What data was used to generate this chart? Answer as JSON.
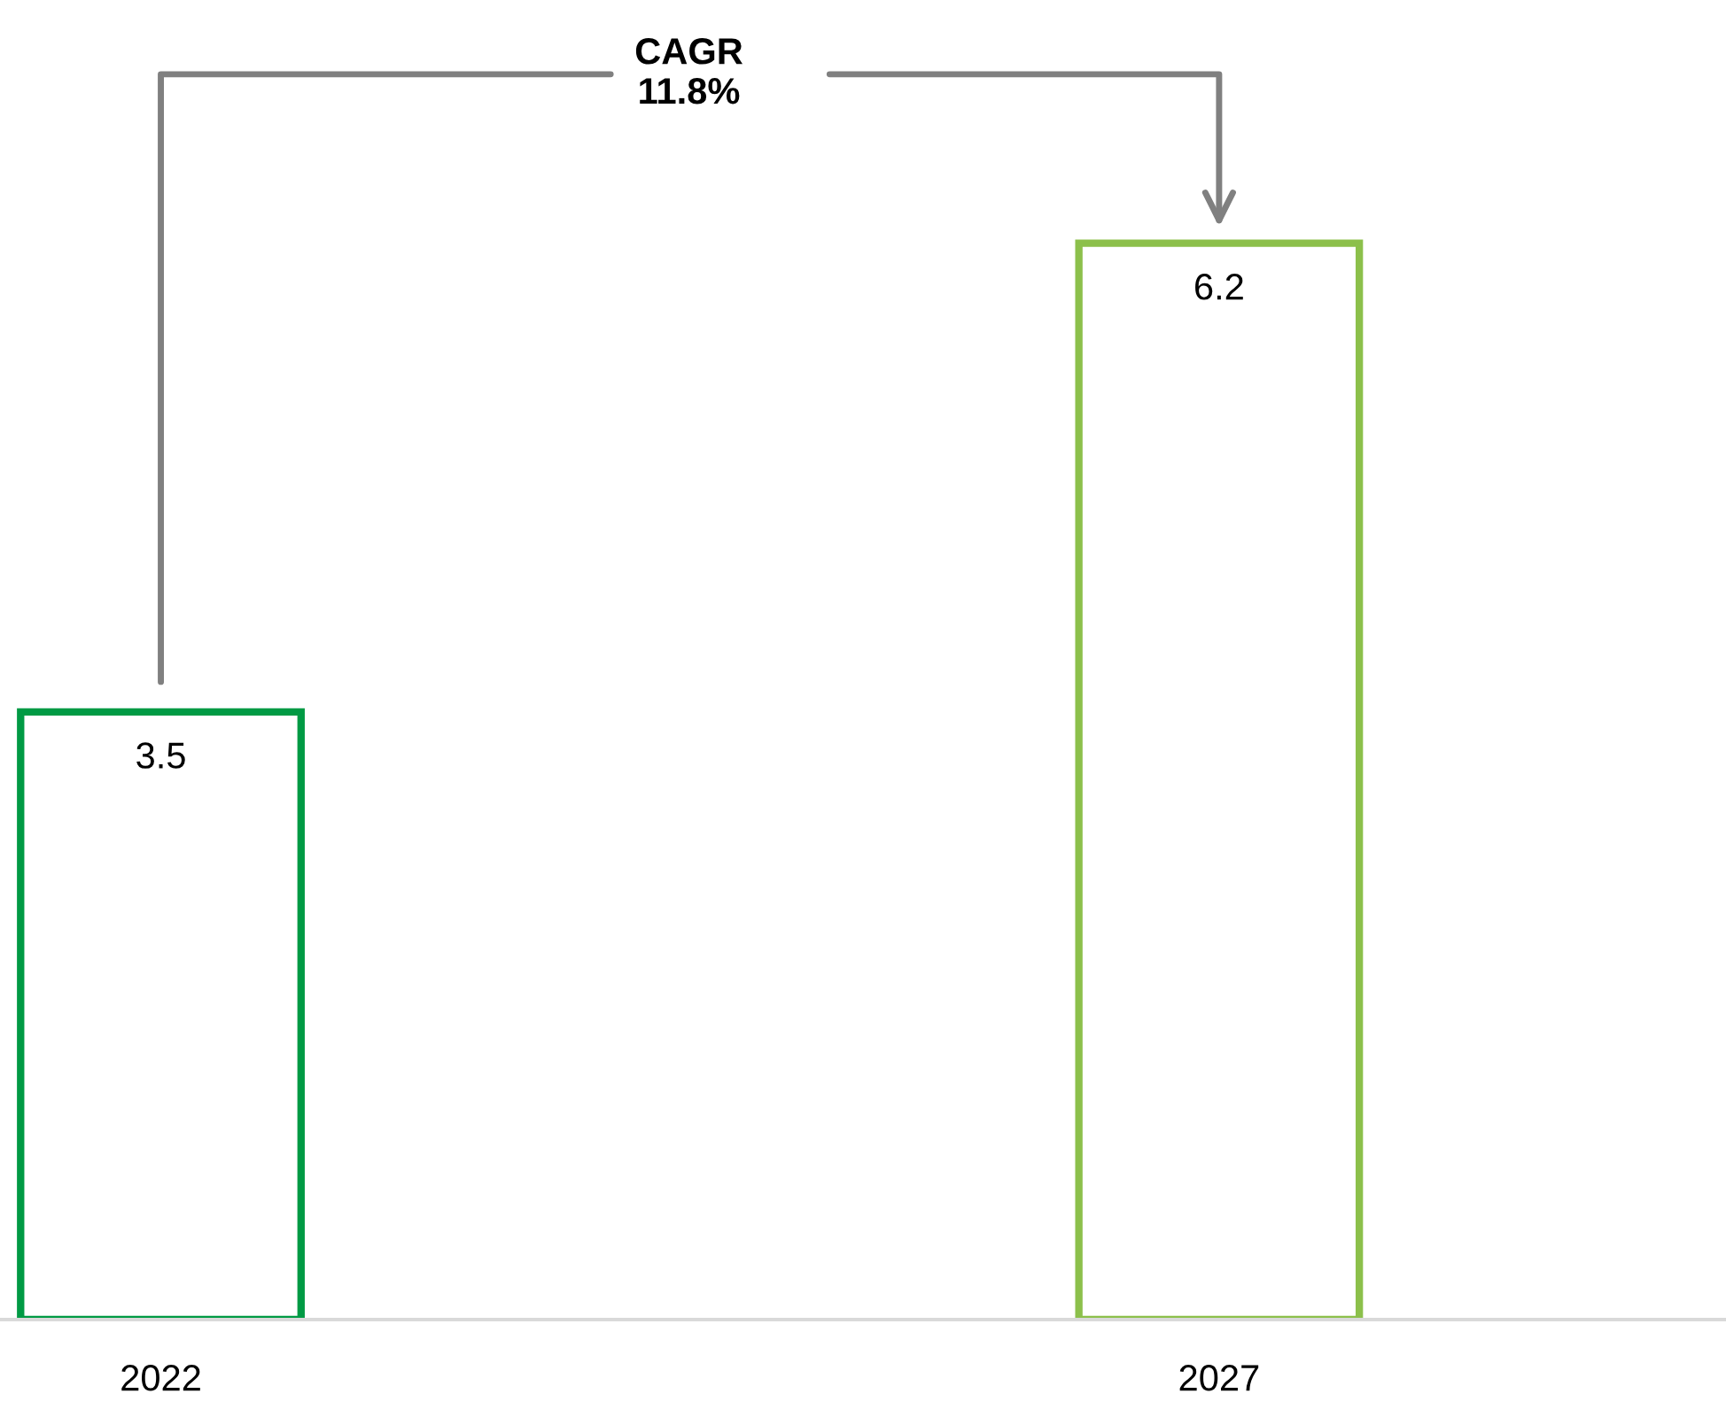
{
  "chart_data": {
    "type": "bar",
    "categories": [
      "2022",
      "2027"
    ],
    "values": [
      3.5,
      6.2
    ],
    "colors": [
      "#009a44",
      "#8cc04b"
    ],
    "data_labels": true,
    "grid": false,
    "legend": false,
    "tick_labels": "x",
    "annotations": [
      "CAGR\n11.8%"
    ]
  }
}
